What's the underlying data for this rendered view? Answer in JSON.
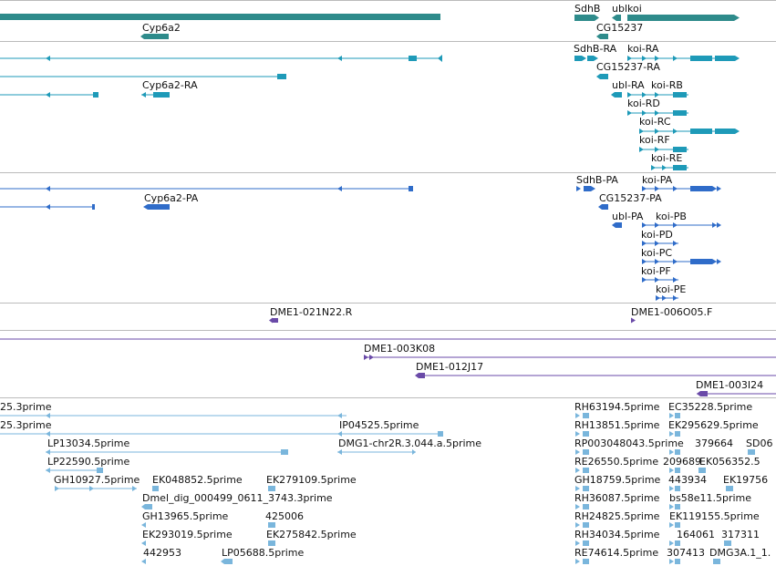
{
  "colors": {
    "gene": "#2e8b8b",
    "mrna": "#1e9ab8",
    "cds": "#2f6cc9",
    "clone": "#6a4aa8",
    "est": "#7ab6dc",
    "separator": "#bbbbbb"
  },
  "tracks": {
    "genes": {
      "labels": [
        "Cyp6a2",
        "SdhB",
        "ubl",
        "koi",
        "CG15237"
      ]
    },
    "transcripts": {
      "labels": [
        "SdhB-RA",
        "koi-RA",
        "CG15237-RA",
        "Cyp6a2-RA",
        "ubl-RA",
        "koi-RB",
        "koi-RD",
        "koi-RC",
        "koi-RF",
        "koi-RE"
      ]
    },
    "proteins": {
      "labels": [
        "SdhB-PA",
        "koi-PA",
        "CG15237-PA",
        "Cyp6a2-PA",
        "ubl-PA",
        "koi-PB",
        "koi-PD",
        "koi-PC",
        "koi-PF",
        "koi-PE"
      ]
    },
    "clones_a": {
      "labels": [
        "DME1-021N22.R",
        "DME1-006O05.F"
      ]
    },
    "clones_b": {
      "labels": [
        "DME1-003K08",
        "DME1-012J17",
        "DME1-003I24"
      ]
    },
    "ests": {
      "labels": [
        "25.3prime",
        "25.3prime",
        "LP13034.5prime",
        "LP22590.5prime",
        "GH10927.5prime",
        "EK048852.5prime",
        "EK279109.5prime",
        "Dmel_dig_000499_0611_3743.3prime",
        "GH13965.5prime",
        "425006",
        "EK293019.5prime",
        "EK275842.5prime",
        "442953",
        "LP05688.5prime",
        "IP04525.5prime",
        "DMG1-chr2R.3.044.a.5prime",
        "RH63194.5prime",
        "EC35228.5prime",
        "RH13851.5prime",
        "EK295629.5prime",
        "RP003048043.5prime",
        "SD06",
        "RE26550.5prime",
        "209689",
        "379664",
        "EK056352.5",
        "GH18759.5prime",
        "443934",
        "EK19756",
        "RH36087.5prime",
        "bs58e11.5prime",
        "RH24825.5prime",
        "EK119155.5prime",
        "RH34034.5prime",
        "164061",
        "317311",
        "RE74614.5prime",
        "307413",
        "DMG3A.1_1."
      ]
    }
  }
}
